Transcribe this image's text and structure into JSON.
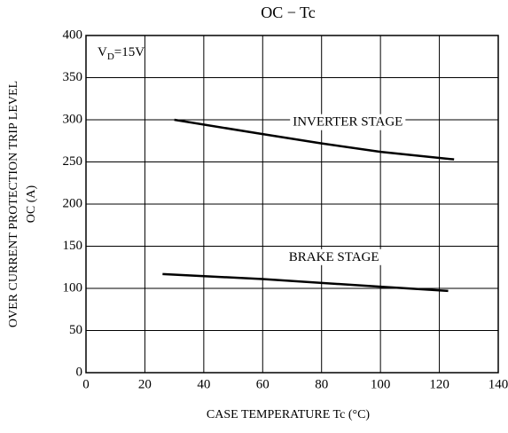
{
  "chart_data": {
    "type": "line",
    "title": "OC − Tc",
    "x_label": "CASE TEMPERATURE  Tc  (°C)",
    "y_label": [
      "OVER CURRENT PROTECTION TRIP LEVEL",
      "OC  (A)"
    ],
    "annotation": {
      "main": "V",
      "sub": "D",
      "rest": "=15V"
    },
    "series": [
      {
        "name": "INVERTER STAGE",
        "color": "#000000",
        "x": [
          30,
          60,
          80,
          100,
          125
        ],
        "values": [
          300,
          283,
          272,
          262,
          253
        ]
      },
      {
        "name": "BRAKE STAGE",
        "color": "#000000",
        "x": [
          26,
          60,
          100,
          123
        ],
        "values": [
          117,
          111,
          102,
          97
        ]
      }
    ],
    "xlim": [
      0,
      140
    ],
    "xticks": [
      0,
      20,
      40,
      60,
      80,
      100,
      120,
      140
    ],
    "ylim": [
      0,
      400
    ],
    "yticks": [
      0,
      50,
      100,
      150,
      200,
      250,
      300,
      350,
      400
    ],
    "grid": true
  }
}
